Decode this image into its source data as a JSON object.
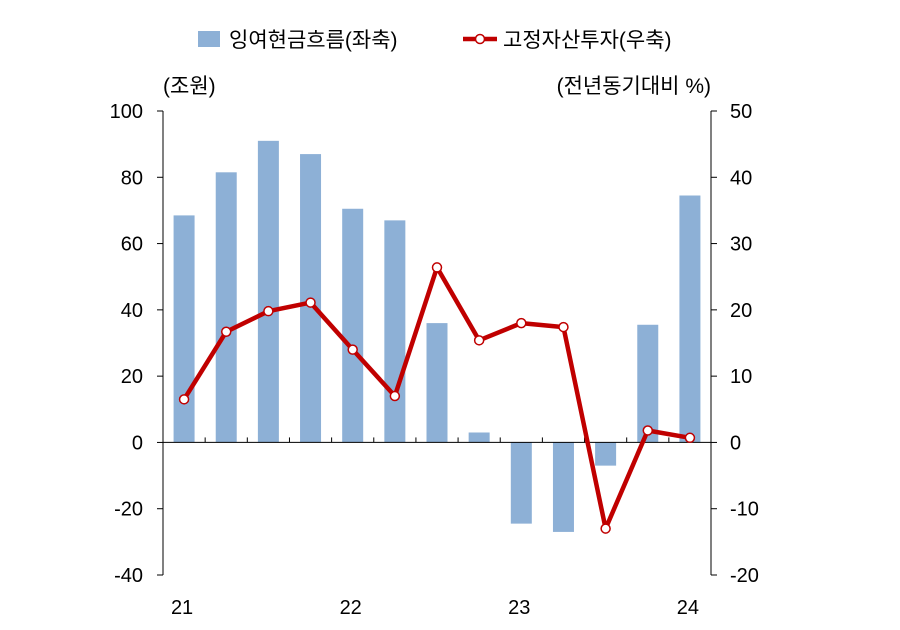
{
  "chart_data": {
    "type": "bar+line",
    "x_tick_labels": [
      "21",
      "22",
      "23",
      "24"
    ],
    "left_unit_label": "(조원)",
    "right_unit_label": "(전년동기대비 %)",
    "left_ylim": [
      -40,
      100
    ],
    "left_yticks": [
      "100",
      "80",
      "60",
      "40",
      "20",
      "0",
      "-20",
      "-40"
    ],
    "right_ylim": [
      -20,
      50
    ],
    "right_yticks": [
      "50",
      "40",
      "30",
      "20",
      "10",
      "0",
      "-10",
      "-20"
    ],
    "periods": 13,
    "series": [
      {
        "name": "잉여현금흐름(좌축)",
        "type": "bar",
        "axis": "left",
        "color": "#8db0d6",
        "values": [
          68.5,
          81.5,
          91,
          87,
          70.5,
          67,
          36,
          3,
          -24.5,
          -27,
          -7,
          35.5,
          74.5
        ]
      },
      {
        "name": "고정자산투자(우축)",
        "type": "line",
        "axis": "right",
        "color": "#c00000",
        "values": [
          6.5,
          16.7,
          19.8,
          21.1,
          14,
          7,
          26.4,
          15.4,
          18,
          17.4,
          -13,
          1.8,
          0.7
        ]
      }
    ],
    "grid": false,
    "legend_position": "top"
  }
}
